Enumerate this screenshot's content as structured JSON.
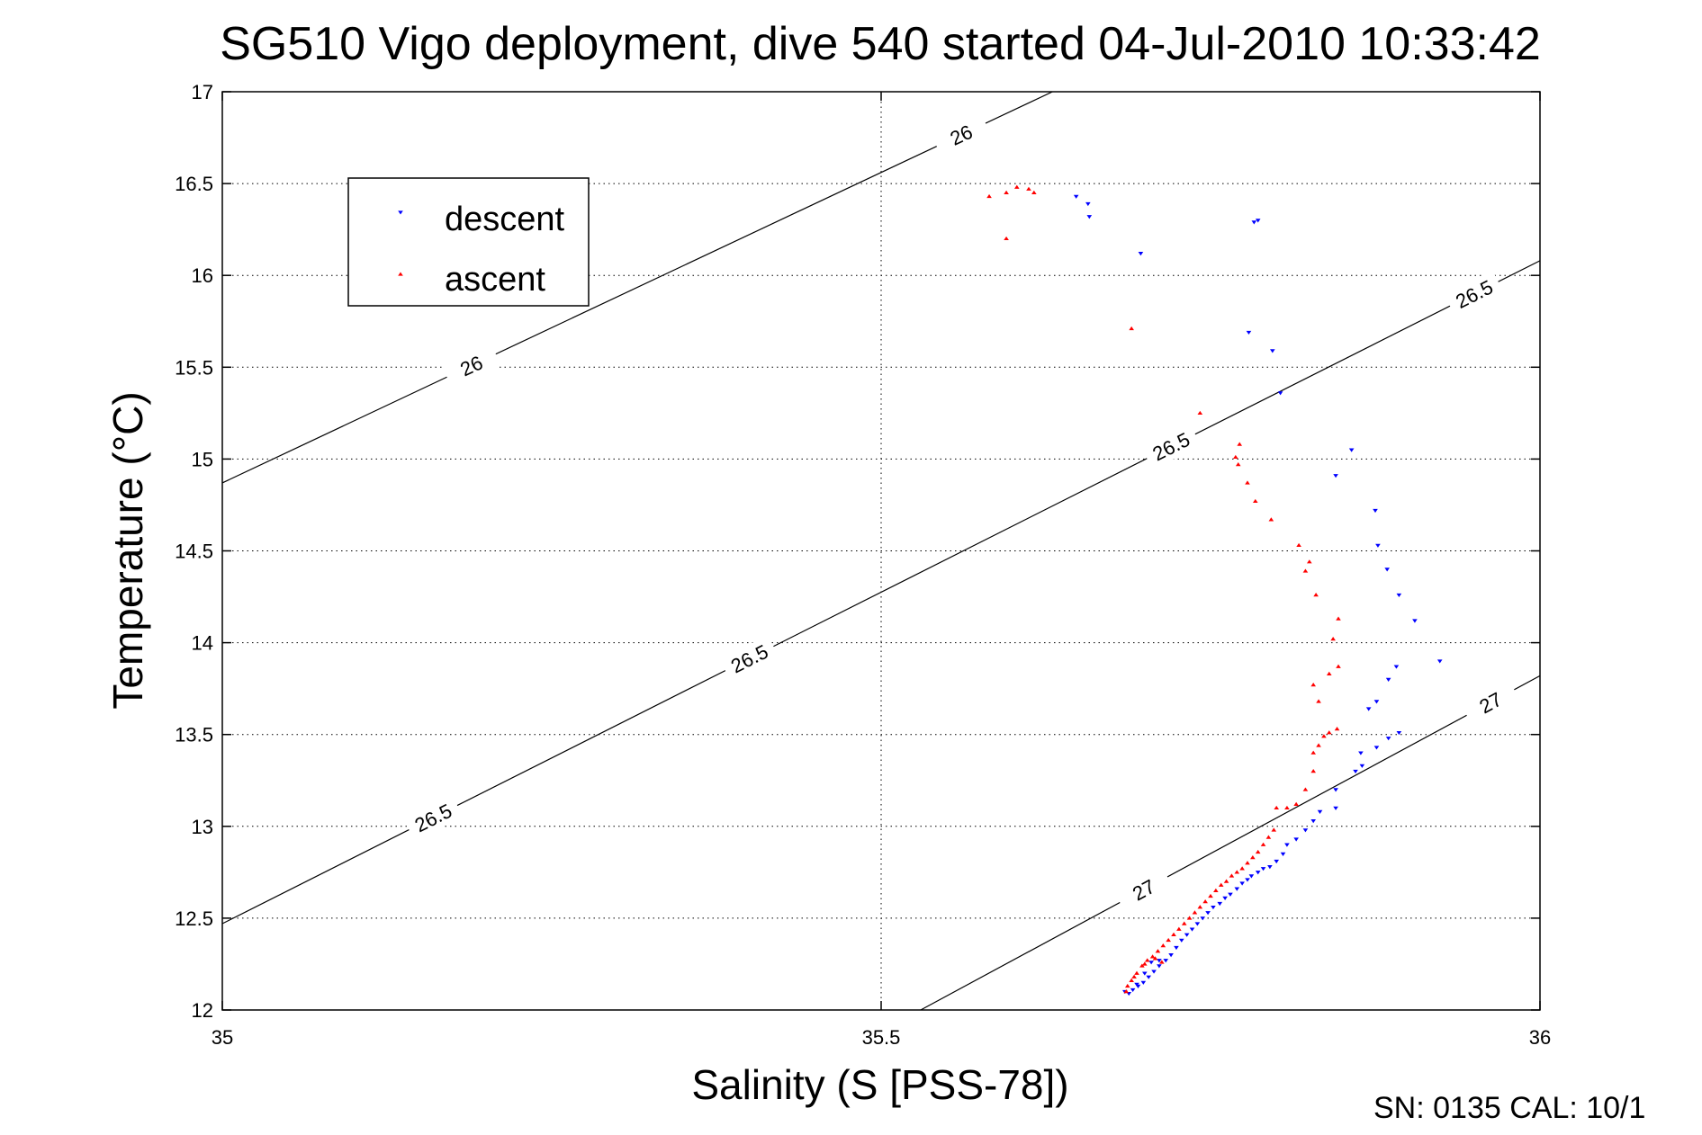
{
  "chart_data": {
    "type": "scatter",
    "title": "SG510 Vigo deployment, dive 540 started 04-Jul-2010 10:33:42",
    "xlabel": "Salinity (S [PSS-78])",
    "ylabel": "Temperature (°C)",
    "xlim": [
      35,
      36
    ],
    "ylim": [
      12,
      17
    ],
    "xticks": [
      "35",
      "35.5",
      "36"
    ],
    "yticks": [
      "12",
      "12.5",
      "13",
      "13.5",
      "14",
      "14.5",
      "15",
      "15.5",
      "16",
      "16.5",
      "17"
    ],
    "grid": true,
    "legend": "top-left",
    "footer": "SN: 0135  CAL: 10/1",
    "contours": [
      {
        "label": "26",
        "value": 26,
        "labels": [
          "26",
          "26"
        ],
        "line": [
          [
            35.0,
            14.87
          ],
          [
            35.63,
            17.0
          ]
        ]
      },
      {
        "label": "26.5",
        "value": 26.5,
        "labels": [
          "26.5",
          "26.5",
          "26.5",
          "26.5"
        ],
        "line": [
          [
            35.0,
            12.47
          ],
          [
            36.0,
            16.08
          ]
        ]
      },
      {
        "label": "27",
        "value": 27,
        "labels": [
          "27",
          "27"
        ],
        "line": [
          [
            35.53,
            12.0
          ],
          [
            36.0,
            13.82
          ]
        ]
      }
    ],
    "series": [
      {
        "name": "descent",
        "color": "#0000ff",
        "marker": "triangle-down",
        "points": [
          [
            35.648,
            16.43
          ],
          [
            35.657,
            16.39
          ],
          [
            35.658,
            16.32
          ],
          [
            35.697,
            16.12
          ],
          [
            35.783,
            16.29
          ],
          [
            35.786,
            16.3
          ],
          [
            35.779,
            15.69
          ],
          [
            35.797,
            15.59
          ],
          [
            35.803,
            15.36
          ],
          [
            35.857,
            15.05
          ],
          [
            35.845,
            14.91
          ],
          [
            35.875,
            14.72
          ],
          [
            35.877,
            14.53
          ],
          [
            35.884,
            14.4
          ],
          [
            35.893,
            14.26
          ],
          [
            35.905,
            14.12
          ],
          [
            35.924,
            13.9
          ],
          [
            35.891,
            13.87
          ],
          [
            35.885,
            13.8
          ],
          [
            35.876,
            13.68
          ],
          [
            35.87,
            13.64
          ],
          [
            35.893,
            13.51
          ],
          [
            35.885,
            13.48
          ],
          [
            35.876,
            13.43
          ],
          [
            35.864,
            13.4
          ],
          [
            35.865,
            13.33
          ],
          [
            35.86,
            13.3
          ],
          [
            35.845,
            13.2
          ],
          [
            35.845,
            13.1
          ],
          [
            35.833,
            13.08
          ],
          [
            35.828,
            13.03
          ],
          [
            35.822,
            12.98
          ],
          [
            35.815,
            12.93
          ],
          [
            35.808,
            12.9
          ],
          [
            35.805,
            12.85
          ],
          [
            35.8,
            12.81
          ],
          [
            35.795,
            12.78
          ],
          [
            35.79,
            12.77
          ],
          [
            35.786,
            12.75
          ],
          [
            35.781,
            12.73
          ],
          [
            35.778,
            12.71
          ],
          [
            35.774,
            12.69
          ],
          [
            35.77,
            12.66
          ],
          [
            35.765,
            12.63
          ],
          [
            35.761,
            12.61
          ],
          [
            35.757,
            12.58
          ],
          [
            35.752,
            12.56
          ],
          [
            35.748,
            12.53
          ],
          [
            35.744,
            12.5
          ],
          [
            35.74,
            12.47
          ],
          [
            35.736,
            12.44
          ],
          [
            35.732,
            12.41
          ],
          [
            35.728,
            12.38
          ],
          [
            35.724,
            12.34
          ],
          [
            35.72,
            12.3
          ],
          [
            35.716,
            12.27
          ],
          [
            35.711,
            12.24
          ],
          [
            35.707,
            12.21
          ],
          [
            35.703,
            12.18
          ],
          [
            35.699,
            12.15
          ],
          [
            35.695,
            12.13
          ],
          [
            35.691,
            12.11
          ],
          [
            35.688,
            12.09
          ],
          [
            35.685,
            12.1
          ],
          [
            35.711,
            12.27
          ],
          [
            35.705,
            12.26
          ],
          [
            35.7,
            12.2
          ],
          [
            35.694,
            12.14
          ]
        ]
      },
      {
        "name": "ascent",
        "color": "#ff0000",
        "marker": "triangle-up",
        "points": [
          [
            35.582,
            16.43
          ],
          [
            35.595,
            16.45
          ],
          [
            35.603,
            16.48
          ],
          [
            35.612,
            16.47
          ],
          [
            35.616,
            16.45
          ],
          [
            35.595,
            16.2
          ],
          [
            35.69,
            15.71
          ],
          [
            35.742,
            15.25
          ],
          [
            35.772,
            15.08
          ],
          [
            35.769,
            15.01
          ],
          [
            35.771,
            14.97
          ],
          [
            35.778,
            14.87
          ],
          [
            35.784,
            14.77
          ],
          [
            35.796,
            14.67
          ],
          [
            35.817,
            14.53
          ],
          [
            35.825,
            14.44
          ],
          [
            35.822,
            14.39
          ],
          [
            35.83,
            14.26
          ],
          [
            35.847,
            14.13
          ],
          [
            35.843,
            14.02
          ],
          [
            35.847,
            13.87
          ],
          [
            35.84,
            13.83
          ],
          [
            35.828,
            13.77
          ],
          [
            35.832,
            13.68
          ],
          [
            35.846,
            13.53
          ],
          [
            35.84,
            13.51
          ],
          [
            35.836,
            13.49
          ],
          [
            35.832,
            13.44
          ],
          [
            35.828,
            13.4
          ],
          [
            35.828,
            13.3
          ],
          [
            35.822,
            13.2
          ],
          [
            35.815,
            13.12
          ],
          [
            35.808,
            13.1
          ],
          [
            35.8,
            13.1
          ],
          [
            35.798,
            12.98
          ],
          [
            35.794,
            12.94
          ],
          [
            35.79,
            12.9
          ],
          [
            35.786,
            12.86
          ],
          [
            35.782,
            12.83
          ],
          [
            35.778,
            12.8
          ],
          [
            35.774,
            12.77
          ],
          [
            35.77,
            12.75
          ],
          [
            35.766,
            12.73
          ],
          [
            35.762,
            12.7
          ],
          [
            35.758,
            12.68
          ],
          [
            35.754,
            12.65
          ],
          [
            35.75,
            12.62
          ],
          [
            35.746,
            12.59
          ],
          [
            35.742,
            12.56
          ],
          [
            35.738,
            12.53
          ],
          [
            35.734,
            12.5
          ],
          [
            35.73,
            12.47
          ],
          [
            35.726,
            12.44
          ],
          [
            35.722,
            12.41
          ],
          [
            35.718,
            12.38
          ],
          [
            35.714,
            12.35
          ],
          [
            35.71,
            12.32
          ],
          [
            35.706,
            12.29
          ],
          [
            35.702,
            12.27
          ],
          [
            35.698,
            12.24
          ],
          [
            35.694,
            12.2
          ],
          [
            35.69,
            12.16
          ],
          [
            35.687,
            12.13
          ],
          [
            35.686,
            12.1
          ],
          [
            35.692,
            12.18
          ],
          [
            35.7,
            12.25
          ],
          [
            35.708,
            12.28
          ],
          [
            35.713,
            12.26
          ]
        ]
      }
    ]
  }
}
